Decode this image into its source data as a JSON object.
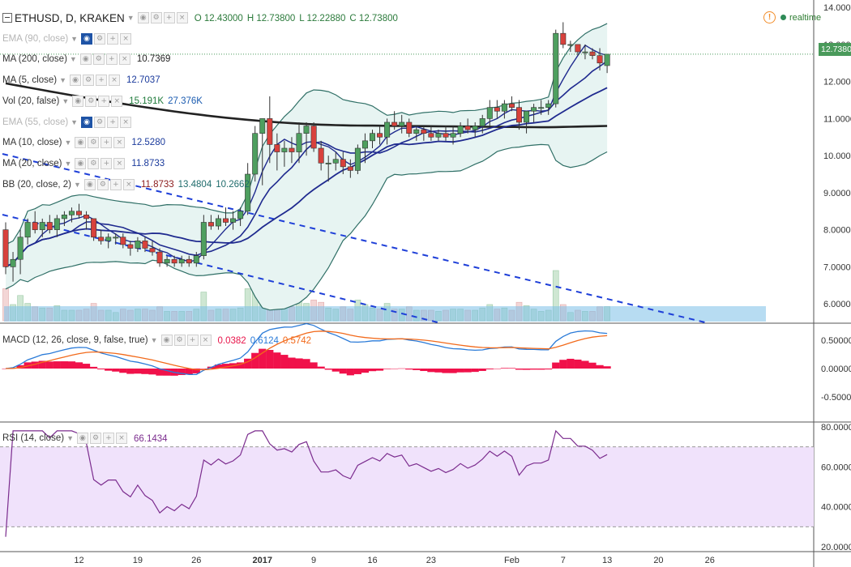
{
  "header": {
    "symbol_line": "ETHUSD, D, KRAKEN",
    "ohlc": [
      {
        "label": "O",
        "value": "12.43000"
      },
      {
        "label": "H",
        "value": "12.73800"
      },
      {
        "label": "L",
        "value": "12.22880"
      },
      {
        "label": "C",
        "value": "12.73800"
      }
    ],
    "realtime_label": "realtime",
    "warning_glyph": "!"
  },
  "indicators": [
    {
      "label": "EMA (90, close)",
      "values": [],
      "faded": true,
      "eye_on": true
    },
    {
      "label": "MA (200, close)",
      "values": [
        {
          "text": "10.7369",
          "color": "#222222"
        }
      ],
      "faded": false,
      "eye_on": false
    },
    {
      "label": "MA (5, close)",
      "values": [
        {
          "text": "12.7037",
          "color": "#1a3a9c"
        }
      ],
      "faded": false,
      "eye_on": false
    },
    {
      "label": "Vol (20, false)",
      "values": [
        {
          "text": "15.191K",
          "color": "#1e7a3a"
        },
        {
          "text": "27.376K",
          "color": "#1a5bb0"
        }
      ],
      "faded": false,
      "eye_on": false
    },
    {
      "label": "EMA (55, close)",
      "values": [],
      "faded": true,
      "eye_on": true
    },
    {
      "label": "MA (10, close)",
      "values": [
        {
          "text": "12.5280",
          "color": "#1a3a9c"
        }
      ],
      "faded": false,
      "eye_on": false
    },
    {
      "label": "MA (20, close)",
      "values": [
        {
          "text": "11.8733",
          "color": "#1a3a9c"
        }
      ],
      "faded": false,
      "eye_on": false
    },
    {
      "label": "BB (20, close, 2)",
      "values": [
        {
          "text": "11.8733",
          "color": "#8b1a1a"
        },
        {
          "text": "13.4804",
          "color": "#1e6b6b"
        },
        {
          "text": "10.2662",
          "color": "#1e6b6b"
        }
      ],
      "faded": false,
      "eye_on": false
    }
  ],
  "price_tag": "12.7380",
  "macd_header": {
    "label": "MACD (12, 26, close, 9, false, true)",
    "values": [
      {
        "text": "0.0382",
        "color": "#e8144a"
      },
      {
        "text": "0.6124",
        "color": "#2b7bd8"
      },
      {
        "text": "0.5742",
        "color": "#f26a1b"
      }
    ]
  },
  "rsi_header": {
    "label": "RSI (14, close)",
    "values": [
      {
        "text": "66.1434",
        "color": "#7b2c8e"
      }
    ]
  },
  "icons": [
    "collapse-icon",
    "eye-icon",
    "settings-icon",
    "add-icon",
    "close-icon",
    "warning-icon",
    "live-dot-icon",
    "dropdown-arrow-icon"
  ],
  "colors": {
    "bull": "#4e9f5f",
    "bear": "#d8413c",
    "ma": "#1f2a8f",
    "ma200": "#222222",
    "bb_fill": "#e7f4f2",
    "bb_line": "#2f6f66",
    "trend": "#1e3fd8",
    "macd_line": "#2b7bd8",
    "signal_line": "#f26a1b",
    "hist": "#f0114a",
    "rsi_line": "#7b2c8e",
    "rsi_band": "#f0e2fb"
  },
  "chart_data": {
    "type": "candlestick",
    "symbol": "ETHUSD",
    "interval": "D",
    "exchange": "KRAKEN",
    "price_axis": {
      "ticks": [
        "14.00000",
        "13.00000",
        "12.00000",
        "11.00000",
        "10.00000",
        "9.00000",
        "8.00000",
        "7.00000",
        "6.00000"
      ],
      "range": [
        5.5,
        14.2
      ]
    },
    "time_axis": {
      "ticks": [
        "12",
        "19",
        "26",
        "2017",
        "9",
        "16",
        "23",
        "Feb",
        "7",
        "13",
        "20",
        "26"
      ]
    },
    "candles": [
      [
        8.0,
        8.2,
        6.8,
        7.0
      ],
      [
        7.0,
        7.4,
        6.6,
        7.2
      ],
      [
        7.2,
        8.0,
        6.8,
        7.8
      ],
      [
        7.8,
        8.3,
        7.6,
        8.2
      ],
      [
        8.2,
        8.5,
        7.9,
        8.0
      ],
      [
        8.0,
        8.3,
        7.8,
        8.2
      ],
      [
        8.2,
        8.4,
        7.9,
        8.0
      ],
      [
        8.0,
        8.4,
        7.8,
        8.3
      ],
      [
        8.3,
        8.5,
        8.1,
        8.4
      ],
      [
        8.4,
        8.6,
        8.2,
        8.5
      ],
      [
        8.5,
        8.7,
        8.3,
        8.4
      ],
      [
        8.4,
        8.5,
        8.0,
        8.3
      ],
      [
        8.3,
        8.3,
        7.7,
        7.8
      ],
      [
        7.8,
        8.0,
        7.6,
        7.7
      ],
      [
        7.7,
        7.9,
        7.5,
        7.8
      ],
      [
        7.8,
        7.9,
        7.6,
        7.8
      ],
      [
        7.8,
        7.9,
        7.5,
        7.6
      ],
      [
        7.6,
        7.7,
        7.3,
        7.5
      ],
      [
        7.5,
        7.8,
        7.4,
        7.7
      ],
      [
        7.7,
        7.8,
        7.4,
        7.5
      ],
      [
        7.5,
        7.7,
        7.3,
        7.4
      ],
      [
        7.4,
        7.5,
        7.0,
        7.1
      ],
      [
        7.1,
        7.3,
        7.0,
        7.2
      ],
      [
        7.2,
        7.3,
        7.0,
        7.1
      ],
      [
        7.1,
        7.3,
        7.0,
        7.2
      ],
      [
        7.2,
        7.3,
        7.0,
        7.1
      ],
      [
        7.1,
        7.4,
        7.0,
        7.3
      ],
      [
        7.3,
        8.4,
        7.2,
        8.2
      ],
      [
        8.2,
        8.4,
        8.0,
        8.1
      ],
      [
        8.1,
        8.4,
        8.0,
        8.3
      ],
      [
        8.3,
        8.6,
        8.1,
        8.2
      ],
      [
        8.2,
        8.5,
        8.0,
        8.3
      ],
      [
        8.3,
        8.6,
        8.1,
        8.5
      ],
      [
        8.5,
        9.8,
        8.4,
        9.5
      ],
      [
        9.5,
        10.8,
        9.3,
        10.6
      ],
      [
        10.6,
        11.0,
        9.2,
        11.0
      ],
      [
        11.0,
        11.6,
        9.8,
        10.3
      ],
      [
        10.3,
        10.6,
        9.6,
        10.1
      ],
      [
        10.1,
        10.4,
        9.7,
        10.2
      ],
      [
        10.2,
        10.5,
        9.8,
        10.1
      ],
      [
        10.1,
        10.9,
        9.8,
        10.6
      ],
      [
        10.6,
        10.9,
        10.0,
        10.8
      ],
      [
        10.8,
        10.9,
        10.1,
        10.2
      ],
      [
        10.2,
        10.4,
        9.6,
        9.8
      ],
      [
        9.8,
        10.0,
        9.3,
        9.8
      ],
      [
        9.8,
        10.1,
        9.6,
        9.9
      ],
      [
        9.9,
        10.1,
        9.5,
        9.7
      ],
      [
        9.7,
        9.9,
        9.4,
        9.6
      ],
      [
        9.6,
        10.3,
        9.5,
        10.2
      ],
      [
        10.2,
        10.6,
        9.8,
        10.4
      ],
      [
        10.4,
        10.7,
        10.2,
        10.6
      ],
      [
        10.6,
        10.8,
        10.3,
        10.5
      ],
      [
        10.5,
        11.0,
        10.3,
        10.9
      ],
      [
        10.9,
        11.2,
        10.7,
        10.8
      ],
      [
        10.8,
        11.1,
        10.6,
        10.9
      ],
      [
        10.9,
        11.0,
        10.5,
        10.6
      ],
      [
        10.6,
        10.8,
        10.4,
        10.7
      ],
      [
        10.7,
        10.8,
        10.4,
        10.6
      ],
      [
        10.6,
        10.8,
        10.4,
        10.5
      ],
      [
        10.5,
        10.7,
        10.4,
        10.6
      ],
      [
        10.6,
        10.8,
        10.4,
        10.5
      ],
      [
        10.5,
        10.8,
        10.3,
        10.6
      ],
      [
        10.6,
        10.9,
        10.5,
        10.8
      ],
      [
        10.8,
        11.0,
        10.6,
        10.7
      ],
      [
        10.7,
        10.9,
        10.5,
        10.8
      ],
      [
        10.8,
        11.1,
        10.6,
        11.0
      ],
      [
        11.0,
        11.5,
        10.8,
        11.3
      ],
      [
        11.3,
        11.5,
        11.0,
        11.2
      ],
      [
        11.2,
        11.5,
        11.0,
        11.4
      ],
      [
        11.4,
        11.6,
        11.2,
        11.3
      ],
      [
        11.3,
        11.5,
        10.7,
        10.9
      ],
      [
        10.9,
        11.2,
        10.6,
        11.2
      ],
      [
        11.2,
        11.4,
        10.9,
        11.3
      ],
      [
        11.3,
        11.5,
        11.1,
        11.3
      ],
      [
        11.3,
        11.5,
        11.1,
        11.4
      ],
      [
        11.4,
        13.4,
        11.3,
        13.3
      ],
      [
        13.3,
        13.6,
        12.9,
        13.0
      ],
      [
        13.0,
        13.1,
        12.8,
        13.0
      ],
      [
        13.0,
        13.0,
        12.7,
        12.8
      ],
      [
        12.8,
        13.0,
        12.6,
        12.8
      ],
      [
        12.8,
        12.9,
        12.6,
        12.7
      ],
      [
        12.7,
        12.9,
        12.3,
        12.5
      ],
      [
        12.43,
        12.738,
        12.2288,
        12.738
      ]
    ]
  }
}
